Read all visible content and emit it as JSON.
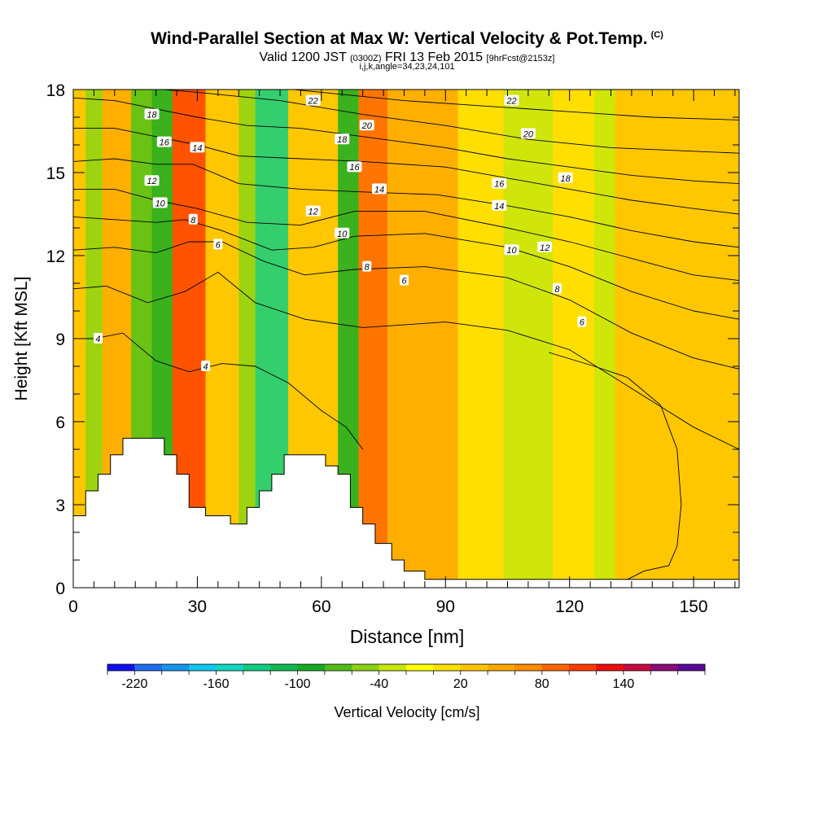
{
  "header": {
    "title": "Wind-Parallel Section at Max W: Vertical Velocity & Pot.Temp.",
    "title_mark": "(C)",
    "valid_prefix": "Valid 1200 JST",
    "valid_utc": "(0300Z)",
    "valid_date": "FRI 13 Feb 2015",
    "valid_forecast": "[9hrFcst@2153z]",
    "params": "i,j,k,angle=34,23,24,101"
  },
  "chart_data": {
    "type": "heatmap",
    "title": "Wind-Parallel Section at Max W: Vertical Velocity & Pot.Temp.",
    "xlabel": "Distance [nm]",
    "ylabel": "Height [Kft MSL]",
    "xlim": [
      0,
      161
    ],
    "ylim": [
      0,
      18
    ],
    "x_ticks": [
      "0",
      "30",
      "60",
      "90",
      "120",
      "150"
    ],
    "y_ticks": [
      "0",
      "3",
      "6",
      "9",
      "12",
      "15",
      "18"
    ],
    "colorbar": {
      "label": "Vertical Velocity [cm/s]",
      "tick_labels": [
        "-220",
        "-160",
        "-100",
        "-40",
        "20",
        "80",
        "140"
      ],
      "colors": [
        "#1010f0",
        "#1e6cf0",
        "#1296ee",
        "#10c8f0",
        "#10d8c0",
        "#12cc80",
        "#12b850",
        "#18aa22",
        "#50be18",
        "#8cd212",
        "#c8e80c",
        "#ffff00",
        "#ffe000",
        "#ffc400",
        "#ffa800",
        "#ff8c00",
        "#ff6400",
        "#ff3c00",
        "#ee0c0c",
        "#c80a40",
        "#8c0c78",
        "#5a0a96"
      ]
    },
    "w_columns": [
      {
        "x0": 0,
        "x1": 3,
        "value": 30
      },
      {
        "x0": 3,
        "x1": 7,
        "value": -60
      },
      {
        "x0": 7,
        "x1": 14,
        "value": 40
      },
      {
        "x0": 14,
        "x1": 19,
        "value": -70
      },
      {
        "x0": 19,
        "x1": 24,
        "value": -100
      },
      {
        "x0": 24,
        "x1": 32,
        "value": 110
      },
      {
        "x0": 32,
        "x1": 40,
        "value": 30
      },
      {
        "x0": 40,
        "x1": 44,
        "value": -60
      },
      {
        "x0": 44,
        "x1": 52,
        "value": -140
      },
      {
        "x0": 52,
        "x1": 60,
        "value": 20
      },
      {
        "x0": 60,
        "x1": 64,
        "value": 30
      },
      {
        "x0": 64,
        "x1": 69,
        "value": -90
      },
      {
        "x0": 69,
        "x1": 76,
        "value": 90
      },
      {
        "x0": 76,
        "x1": 93,
        "value": 40
      },
      {
        "x0": 93,
        "x1": 104,
        "value": 10
      },
      {
        "x0": 104,
        "x1": 116,
        "value": -40
      },
      {
        "x0": 116,
        "x1": 126,
        "value": 10
      },
      {
        "x0": 126,
        "x1": 131,
        "value": -30
      },
      {
        "x0": 131,
        "x1": 145,
        "value": 20
      },
      {
        "x0": 145,
        "x1": 161,
        "value": 30
      }
    ],
    "terrain": [
      [
        0,
        2.6
      ],
      [
        3,
        2.6
      ],
      [
        3,
        3.5
      ],
      [
        6,
        3.5
      ],
      [
        6,
        4.1
      ],
      [
        9,
        4.1
      ],
      [
        9,
        4.8
      ],
      [
        12,
        4.8
      ],
      [
        12,
        5.4
      ],
      [
        22,
        5.4
      ],
      [
        22,
        4.8
      ],
      [
        25,
        4.8
      ],
      [
        25,
        4.1
      ],
      [
        28,
        4.1
      ],
      [
        28,
        2.9
      ],
      [
        32,
        2.9
      ],
      [
        32,
        2.6
      ],
      [
        38,
        2.6
      ],
      [
        38,
        2.3
      ],
      [
        42,
        2.3
      ],
      [
        42,
        2.9
      ],
      [
        45,
        2.9
      ],
      [
        45,
        3.5
      ],
      [
        48,
        3.5
      ],
      [
        48,
        4.1
      ],
      [
        51,
        4.1
      ],
      [
        51,
        4.8
      ],
      [
        61,
        4.8
      ],
      [
        61,
        4.4
      ],
      [
        64,
        4.4
      ],
      [
        64,
        4.1
      ],
      [
        67,
        4.1
      ],
      [
        67,
        2.9
      ],
      [
        70,
        2.9
      ],
      [
        70,
        2.3
      ],
      [
        73,
        2.3
      ],
      [
        73,
        1.6
      ],
      [
        77,
        1.6
      ],
      [
        77,
        1
      ],
      [
        80,
        1
      ],
      [
        80,
        0.6
      ],
      [
        85,
        0.6
      ],
      [
        85,
        0.3
      ],
      [
        161,
        0.3
      ]
    ],
    "theta_contours": [
      {
        "label": "4",
        "points": [
          [
            0,
            9
          ],
          [
            5,
            9
          ],
          [
            12,
            9.2
          ],
          [
            20,
            8.2
          ],
          [
            28,
            7.8
          ],
          [
            36,
            8.1
          ],
          [
            44,
            8.0
          ],
          [
            52,
            7.4
          ],
          [
            60,
            6.4
          ],
          [
            66,
            5.8
          ],
          [
            70,
            5.0
          ]
        ]
      },
      {
        "label": "6",
        "points": [
          [
            0,
            10.8
          ],
          [
            8,
            10.9
          ],
          [
            18,
            10.3
          ],
          [
            27,
            10.7
          ],
          [
            35,
            11.4
          ],
          [
            44,
            10.3
          ],
          [
            56,
            9.7
          ],
          [
            70,
            9.4
          ],
          [
            90,
            9.6
          ],
          [
            105,
            9.3
          ],
          [
            120,
            8.6
          ],
          [
            135,
            7.2
          ],
          [
            150,
            5.8
          ],
          [
            161,
            5.0
          ]
        ]
      },
      {
        "label": "8",
        "points": [
          [
            0,
            12.2
          ],
          [
            10,
            12.3
          ],
          [
            20,
            12.1
          ],
          [
            28,
            12.5
          ],
          [
            36,
            12.5
          ],
          [
            46,
            11.8
          ],
          [
            56,
            11.3
          ],
          [
            68,
            11.5
          ],
          [
            85,
            11.6
          ],
          [
            105,
            11.2
          ],
          [
            120,
            10.4
          ],
          [
            135,
            9.2
          ],
          [
            150,
            8.3
          ],
          [
            161,
            7.9
          ]
        ]
      },
      {
        "label": "10",
        "points": [
          [
            0,
            13.4
          ],
          [
            10,
            13.3
          ],
          [
            20,
            13.2
          ],
          [
            27,
            13.3
          ],
          [
            36,
            12.9
          ],
          [
            48,
            12.2
          ],
          [
            58,
            12.3
          ],
          [
            68,
            12.7
          ],
          [
            85,
            12.8
          ],
          [
            105,
            12.3
          ],
          [
            120,
            11.6
          ],
          [
            135,
            10.7
          ],
          [
            150,
            10.0
          ],
          [
            161,
            9.7
          ]
        ]
      },
      {
        "label": "12",
        "points": [
          [
            0,
            14.4
          ],
          [
            10,
            14.4
          ],
          [
            20,
            14.0
          ],
          [
            30,
            13.7
          ],
          [
            42,
            13.2
          ],
          [
            55,
            13.1
          ],
          [
            68,
            13.6
          ],
          [
            85,
            13.6
          ],
          [
            105,
            13.0
          ],
          [
            120,
            12.5
          ],
          [
            135,
            11.9
          ],
          [
            150,
            11.3
          ],
          [
            161,
            11.1
          ]
        ]
      },
      {
        "label": "14",
        "points": [
          [
            0,
            15.4
          ],
          [
            10,
            15.5
          ],
          [
            20,
            15.3
          ],
          [
            29,
            15.3
          ],
          [
            40,
            14.6
          ],
          [
            55,
            14.4
          ],
          [
            70,
            14.3
          ],
          [
            88,
            14.2
          ],
          [
            105,
            13.8
          ],
          [
            120,
            13.4
          ],
          [
            135,
            12.9
          ],
          [
            150,
            12.5
          ],
          [
            161,
            12.3
          ]
        ]
      },
      {
        "label": "16",
        "points": [
          [
            0,
            16.6
          ],
          [
            10,
            16.6
          ],
          [
            20,
            16.3
          ],
          [
            30,
            16.0
          ],
          [
            40,
            15.6
          ],
          [
            55,
            15.5
          ],
          [
            70,
            15.4
          ],
          [
            90,
            15.2
          ],
          [
            105,
            14.8
          ],
          [
            120,
            14.4
          ],
          [
            135,
            14.0
          ],
          [
            150,
            13.7
          ],
          [
            161,
            13.5
          ]
        ]
      },
      {
        "label": "18",
        "points": [
          [
            0,
            17.7
          ],
          [
            10,
            17.6
          ],
          [
            20,
            17.3
          ],
          [
            30,
            17.0
          ],
          [
            42,
            16.7
          ],
          [
            55,
            16.6
          ],
          [
            70,
            16.3
          ],
          [
            90,
            15.9
          ],
          [
            105,
            15.5
          ],
          [
            120,
            15.2
          ],
          [
            135,
            14.9
          ],
          [
            150,
            14.7
          ],
          [
            161,
            14.6
          ]
        ]
      },
      {
        "label": "20",
        "points": [
          [
            5,
            18.2
          ],
          [
            30,
            17.9
          ],
          [
            50,
            17.6
          ],
          [
            70,
            17.1
          ],
          [
            90,
            16.7
          ],
          [
            110,
            16.2
          ],
          [
            130,
            15.9
          ],
          [
            161,
            15.7
          ]
        ]
      },
      {
        "label": "22",
        "points": [
          [
            40,
            18.2
          ],
          [
            60,
            17.9
          ],
          [
            80,
            17.6
          ],
          [
            100,
            17.4
          ],
          [
            120,
            17.2
          ],
          [
            140,
            17.0
          ],
          [
            161,
            16.9
          ]
        ]
      }
    ],
    "contour_labels": [
      {
        "text": "4",
        "x": 6,
        "y": 9.0
      },
      {
        "text": "4",
        "x": 32,
        "y": 8.0
      },
      {
        "text": "6",
        "x": 35,
        "y": 12.4
      },
      {
        "text": "6",
        "x": 80,
        "y": 11.1
      },
      {
        "text": "6",
        "x": 123,
        "y": 9.6
      },
      {
        "text": "8",
        "x": 29,
        "y": 13.3
      },
      {
        "text": "8",
        "x": 71,
        "y": 11.6
      },
      {
        "text": "8",
        "x": 117,
        "y": 10.8
      },
      {
        "text": "10",
        "x": 21,
        "y": 13.9
      },
      {
        "text": "10",
        "x": 65,
        "y": 12.8
      },
      {
        "text": "10",
        "x": 106,
        "y": 12.2
      },
      {
        "text": "12",
        "x": 19,
        "y": 14.7
      },
      {
        "text": "12",
        "x": 58,
        "y": 13.6
      },
      {
        "text": "12",
        "x": 114,
        "y": 12.3
      },
      {
        "text": "14",
        "x": 30,
        "y": 15.9
      },
      {
        "text": "14",
        "x": 74,
        "y": 14.4
      },
      {
        "text": "14",
        "x": 103,
        "y": 13.8
      },
      {
        "text": "16",
        "x": 22,
        "y": 16.1
      },
      {
        "text": "16",
        "x": 68,
        "y": 15.2
      },
      {
        "text": "16",
        "x": 103,
        "y": 14.6
      },
      {
        "text": "18",
        "x": 19,
        "y": 17.1
      },
      {
        "text": "18",
        "x": 65,
        "y": 16.2
      },
      {
        "text": "18",
        "x": 119,
        "y": 14.8
      },
      {
        "text": "20",
        "x": 71,
        "y": 16.7
      },
      {
        "text": "20",
        "x": 110,
        "y": 16.4
      },
      {
        "text": "22",
        "x": 58,
        "y": 17.6
      },
      {
        "text": "22",
        "x": 106,
        "y": 17.6
      }
    ],
    "extra_contour": {
      "label": "",
      "points": [
        [
          134,
          0.3
        ],
        [
          138,
          0.6
        ],
        [
          144,
          0.8
        ],
        [
          146,
          1.5
        ],
        [
          147,
          3
        ],
        [
          146,
          5
        ],
        [
          142,
          6.6
        ],
        [
          134,
          7.6
        ],
        [
          126,
          8.0
        ],
        [
          115,
          8.5
        ]
      ]
    }
  }
}
